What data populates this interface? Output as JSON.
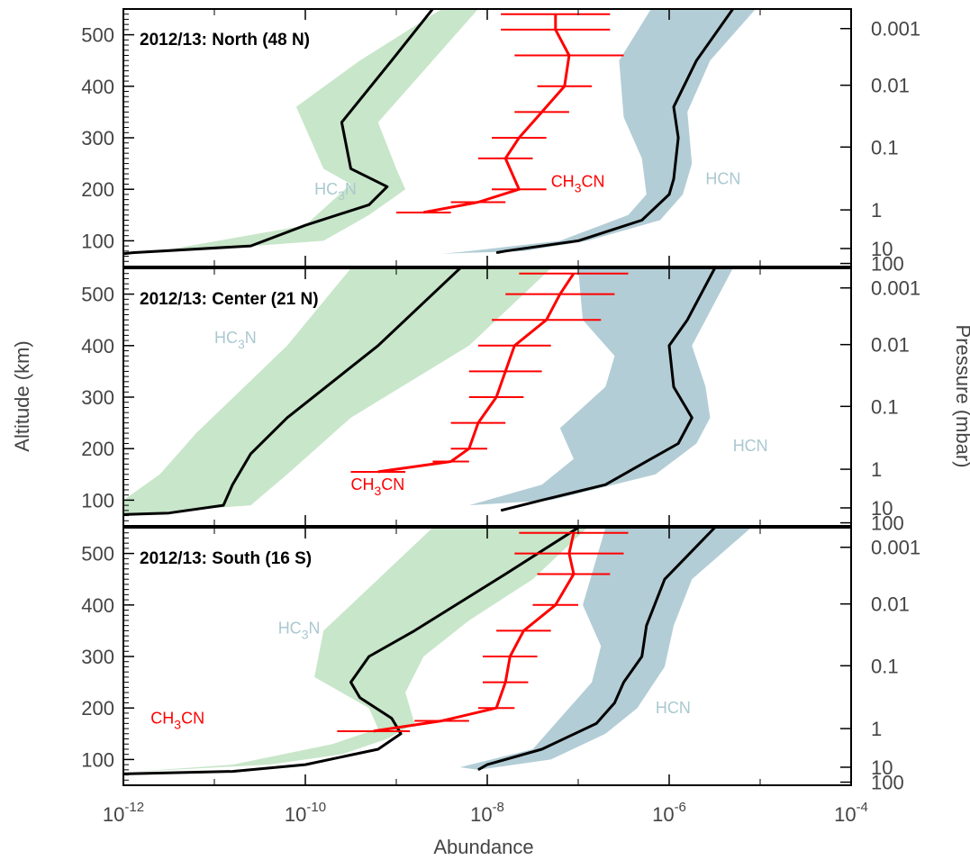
{
  "chart_data": {
    "type": "line",
    "xlabel": "Abundance",
    "ylabel": "Altitude (km)",
    "y2label": "Pressure (mbar)",
    "xscale": "log",
    "xlim": [
      1e-12,
      0.0001
    ],
    "xticks": [
      {
        "base": "10",
        "exp": "-12"
      },
      {
        "base": "10",
        "exp": "-10"
      },
      {
        "base": "10",
        "exp": "-8"
      },
      {
        "base": "10",
        "exp": "-6"
      },
      {
        "base": "10",
        "exp": "-4"
      }
    ],
    "ylim": [
      50,
      550
    ],
    "yticks": [
      "100",
      "200",
      "300",
      "400",
      "500"
    ],
    "pressure_ticks": [
      {
        "label": "0.001",
        "altitude": 512
      },
      {
        "label": "0.01",
        "altitude": 402
      },
      {
        "label": "0.1",
        "altitude": 282
      },
      {
        "label": "1",
        "altitude": 160
      },
      {
        "label": "10",
        "altitude": 85
      },
      {
        "label": "100",
        "altitude": 56
      }
    ],
    "colors": {
      "HC3N": "#c8e6c9",
      "HCN": "#b3cdd6",
      "CH3CN": "#ff0000",
      "model": "#000000",
      "label_hc3n_hcn": "#aac8d0"
    },
    "panels": [
      {
        "title": "2012/13: North (48 N)",
        "labels": {
          "HC3N": "HC3N",
          "HCN": "HCN",
          "CH3CN": "CH3CN"
        },
        "series": [
          {
            "species": "HC3N",
            "line": [
              [
                -8.6,
                550
              ],
              [
                -9.05,
                450
              ],
              [
                -9.6,
                330
              ],
              [
                -9.5,
                240
              ],
              [
                -9.1,
                205
              ],
              [
                -9.3,
                170
              ],
              [
                -10,
                130
              ],
              [
                -10.6,
                90
              ],
              [
                -11.9,
                77
              ],
              [
                -12,
                75
              ]
            ],
            "band_left": [
              [
                -8.5,
                550
              ],
              [
                -9.4,
                450
              ],
              [
                -10.1,
                360
              ],
              [
                -9.8,
                240
              ],
              [
                -9.5,
                210
              ],
              [
                -10,
                130
              ],
              [
                -11.6,
                80
              ],
              [
                -12,
                75
              ]
            ],
            "band_right": [
              [
                -8.1,
                550
              ],
              [
                -8.6,
                450
              ],
              [
                -9.2,
                330
              ],
              [
                -9.0,
                240
              ],
              [
                -8.9,
                200
              ],
              [
                -9.3,
                150
              ],
              [
                -9.8,
                100
              ],
              [
                -11.5,
                78
              ],
              [
                -12,
                75
              ]
            ]
          },
          {
            "species": "HCN",
            "line": [
              [
                -5.3,
                550
              ],
              [
                -5.7,
                450
              ],
              [
                -5.95,
                360
              ],
              [
                -5.9,
                300
              ],
              [
                -5.95,
                220
              ],
              [
                -6,
                190
              ],
              [
                -6.3,
                140
              ],
              [
                -7,
                100
              ],
              [
                -7.8,
                80
              ],
              [
                -7.9,
                77
              ]
            ],
            "band_left": [
              [
                -6.2,
                550
              ],
              [
                -6.55,
                450
              ],
              [
                -6.5,
                340
              ],
              [
                -6.3,
                260
              ],
              [
                -6.25,
                190
              ],
              [
                -6.45,
                150
              ],
              [
                -7.2,
                100
              ],
              [
                -8.3,
                78
              ],
              [
                -8.5,
                75
              ]
            ],
            "band_right": [
              [
                -5.05,
                550
              ],
              [
                -5.55,
                450
              ],
              [
                -5.8,
                350
              ],
              [
                -5.75,
                250
              ],
              [
                -5.85,
                190
              ],
              [
                -6.1,
                140
              ],
              [
                -6.9,
                100
              ],
              [
                -7.6,
                80
              ]
            ]
          }
        ],
        "ch3cn": {
          "x": [
            -7.25,
            -7.25,
            -7.1,
            -7.15,
            -7.4,
            -7.65,
            -7.8,
            -7.65,
            -8.1,
            -8.7
          ],
          "y": [
            540,
            510,
            460,
            400,
            350,
            300,
            260,
            200,
            175,
            155
          ],
          "err": [
            0.6,
            0.6,
            0.6,
            0.3,
            0.3,
            0.3,
            0.3,
            0.3,
            0.3,
            0.3
          ]
        }
      },
      {
        "title": "2012/13: Center (21 N)",
        "labels": {
          "HC3N": "HC3N",
          "HCN": "HCN",
          "CH3CN": "CH3CN"
        },
        "series": [
          {
            "species": "HC3N",
            "line": [
              [
                -8.3,
                550
              ],
              [
                -9.2,
                400
              ],
              [
                -10.2,
                260
              ],
              [
                -10.6,
                190
              ],
              [
                -10.8,
                130
              ],
              [
                -10.9,
                90
              ],
              [
                -11.5,
                75
              ],
              [
                -12,
                72
              ]
            ],
            "band_left": [
              [
                -9.5,
                550
              ],
              [
                -10.2,
                400
              ],
              [
                -11.2,
                230
              ],
              [
                -11.6,
                150
              ],
              [
                -12,
                100
              ],
              [
                -12,
                72
              ]
            ],
            "band_right": [
              [
                -7.3,
                550
              ],
              [
                -8.2,
                400
              ],
              [
                -9.5,
                260
              ],
              [
                -10.2,
                150
              ],
              [
                -10.6,
                90
              ]
            ],
            "band_close_left": [
              [
                -12,
                72
              ]
            ]
          },
          {
            "species": "HCN",
            "line": [
              [
                -5.5,
                550
              ],
              [
                -5.8,
                450
              ],
              [
                -6,
                400
              ],
              [
                -5.95,
                320
              ],
              [
                -5.75,
                260
              ],
              [
                -5.9,
                210
              ],
              [
                -6.2,
                180
              ],
              [
                -6.7,
                130
              ],
              [
                -7.4,
                100
              ],
              [
                -7.85,
                80
              ]
            ],
            "band_left": [
              [
                -7,
                550
              ],
              [
                -6.95,
                450
              ],
              [
                -6.6,
                380
              ],
              [
                -6.7,
                320
              ],
              [
                -7.2,
                240
              ],
              [
                -7.05,
                180
              ],
              [
                -7.4,
                130
              ],
              [
                -8.2,
                90
              ]
            ],
            "band_right": [
              [
                -5.3,
                550
              ],
              [
                -5.6,
                450
              ],
              [
                -5.75,
                400
              ],
              [
                -5.6,
                320
              ],
              [
                -5.55,
                260
              ],
              [
                -5.7,
                210
              ],
              [
                -6.15,
                150
              ],
              [
                -7.3,
                100
              ]
            ]
          }
        ],
        "ch3cn": {
          "x": [
            -7.05,
            -7.2,
            -7.35,
            -7.7,
            -7.8,
            -7.9,
            -8.1,
            -8.2,
            -8.4,
            -9.2
          ],
          "y": [
            540,
            500,
            450,
            400,
            350,
            300,
            250,
            200,
            175,
            155
          ],
          "err": [
            0.6,
            0.6,
            0.6,
            0.4,
            0.4,
            0.3,
            0.3,
            0.2,
            0.2,
            0.3
          ]
        }
      },
      {
        "title": "2012/13: South (16 S)",
        "labels": {
          "HC3N": "HC3N",
          "HCN": "HCN",
          "CH3CN": "CH3CN"
        },
        "series": [
          {
            "species": "HC3N",
            "line": [
              [
                -7.0,
                550
              ],
              [
                -7.8,
                460
              ],
              [
                -8.8,
                350
              ],
              [
                -9.3,
                300
              ],
              [
                -9.5,
                250
              ],
              [
                -9.4,
                220
              ],
              [
                -9.05,
                180
              ],
              [
                -8.95,
                150
              ],
              [
                -9.2,
                120
              ],
              [
                -10,
                90
              ],
              [
                -10.8,
                77
              ],
              [
                -12,
                72
              ]
            ],
            "band_left": [
              [
                -8.6,
                550
              ],
              [
                -9.2,
                450
              ],
              [
                -9.8,
                350
              ],
              [
                -9.9,
                260
              ],
              [
                -9.3,
                200
              ],
              [
                -9.2,
                160
              ],
              [
                -9.7,
                130
              ],
              [
                -10.8,
                90
              ],
              [
                -12,
                75
              ]
            ],
            "band_right": [
              [
                -6.9,
                550
              ],
              [
                -7.5,
                450
              ],
              [
                -8.2,
                370
              ],
              [
                -8.7,
                300
              ],
              [
                -8.9,
                230
              ],
              [
                -8.8,
                170
              ],
              [
                -9.1,
                140
              ],
              [
                -9.6,
                110
              ],
              [
                -10.4,
                90
              ]
            ]
          },
          {
            "species": "HCN",
            "line": [
              [
                -5.5,
                550
              ],
              [
                -6.05,
                450
              ],
              [
                -6.25,
                360
              ],
              [
                -6.3,
                300
              ],
              [
                -6.5,
                250
              ],
              [
                -6.6,
                210
              ],
              [
                -6.8,
                170
              ],
              [
                -7.4,
                120
              ],
              [
                -8.0,
                90
              ],
              [
                -8.1,
                80
              ]
            ],
            "band_left": [
              [
                -6.7,
                550
              ],
              [
                -6.95,
                400
              ],
              [
                -6.75,
                320
              ],
              [
                -6.85,
                250
              ],
              [
                -7.2,
                180
              ],
              [
                -7.5,
                120
              ],
              [
                -8.3,
                85
              ]
            ],
            "band_right": [
              [
                -5.1,
                550
              ],
              [
                -5.75,
                450
              ],
              [
                -5.95,
                360
              ],
              [
                -6.05,
                280
              ],
              [
                -6.35,
                200
              ],
              [
                -6.7,
                150
              ],
              [
                -7.3,
                100
              ],
              [
                -8.1,
                80
              ]
            ]
          }
        ],
        "ch3cn": {
          "x": [
            -7.05,
            -7.1,
            -7.05,
            -7.25,
            -7.6,
            -7.75,
            -7.8,
            -7.9,
            -8.5,
            -9.25
          ],
          "y": [
            540,
            500,
            460,
            400,
            350,
            300,
            250,
            200,
            175,
            155
          ],
          "err": [
            0.6,
            0.6,
            0.4,
            0.25,
            0.3,
            0.3,
            0.25,
            0.2,
            0.3,
            0.4
          ]
        }
      }
    ]
  }
}
